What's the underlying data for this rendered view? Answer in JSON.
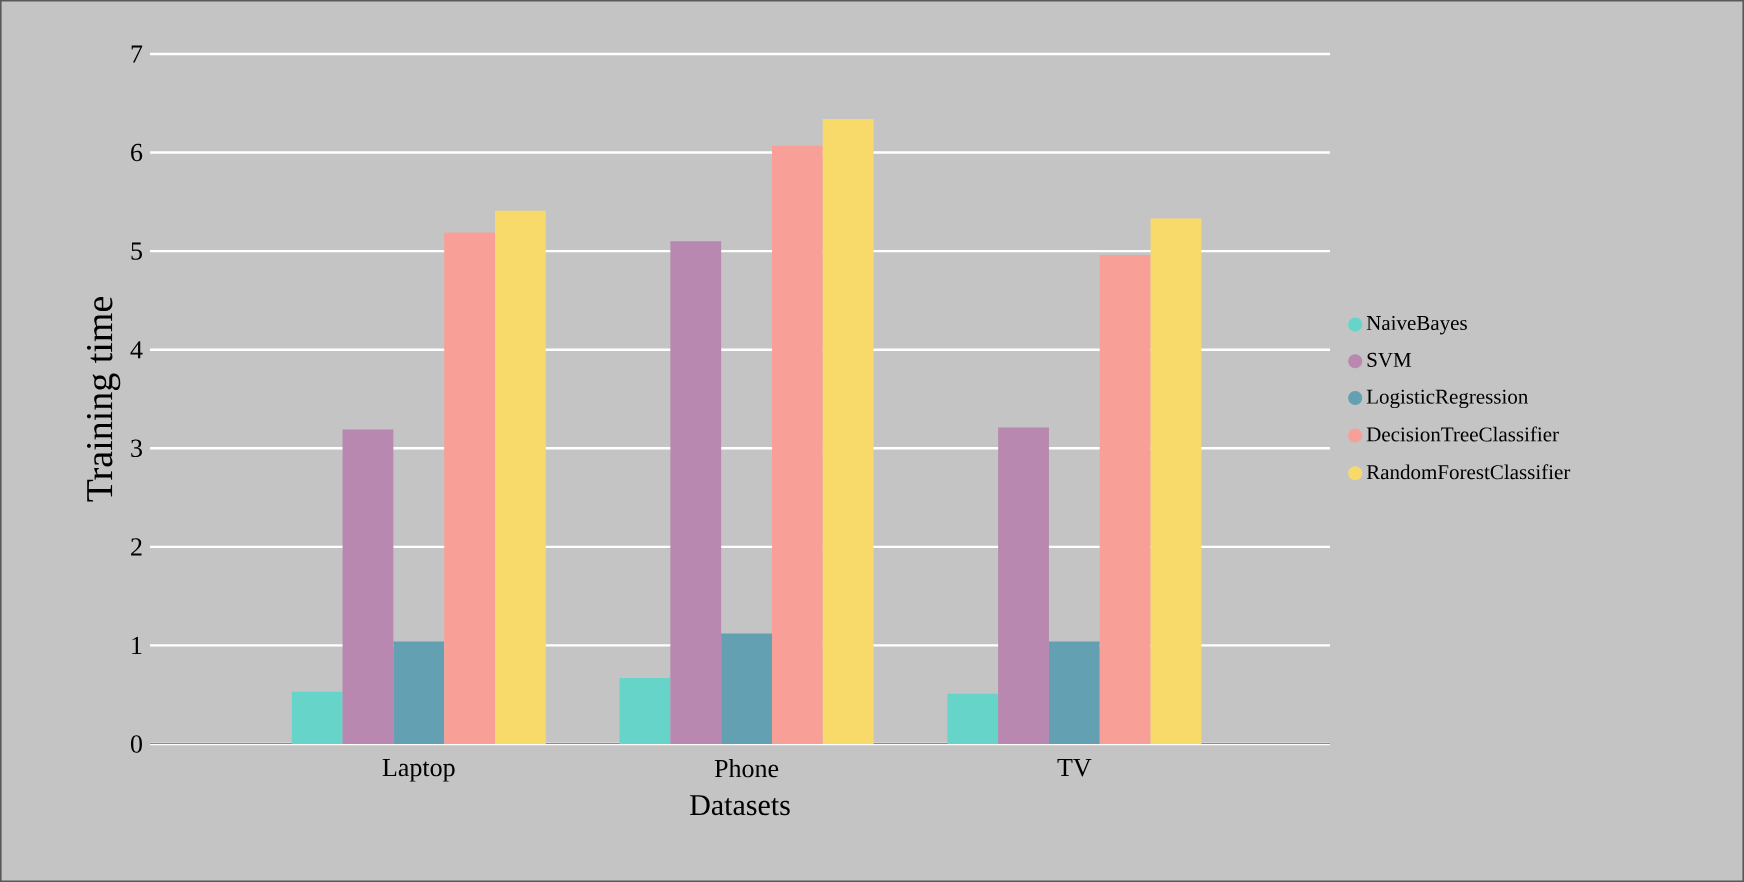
{
  "chart_data": {
    "type": "bar",
    "xlabel": "Datasets",
    "ylabel": "Training time",
    "categories": [
      "Laptop",
      "Phone",
      "TV"
    ],
    "series": [
      {
        "name": "NaiveBayes",
        "color": "#66d4c8",
        "values": [
          0.53,
          0.67,
          0.51
        ]
      },
      {
        "name": "SVM",
        "color": "#b888b0",
        "values": [
          3.19,
          5.1,
          3.21
        ]
      },
      {
        "name": "LogisticRegression",
        "color": "#62a0b2",
        "values": [
          1.04,
          1.12,
          1.04
        ]
      },
      {
        "name": "DecisionTreeClassifier",
        "color": "#f8a098",
        "values": [
          5.19,
          6.07,
          4.96
        ]
      },
      {
        "name": "RandomForestClassifier",
        "color": "#f8da6a",
        "values": [
          5.41,
          6.34,
          5.33
        ]
      }
    ],
    "ylim": [
      0,
      7
    ],
    "yticks": [
      0,
      1,
      2,
      3,
      4,
      5,
      6,
      7
    ],
    "grid": "y",
    "legend": "right"
  }
}
